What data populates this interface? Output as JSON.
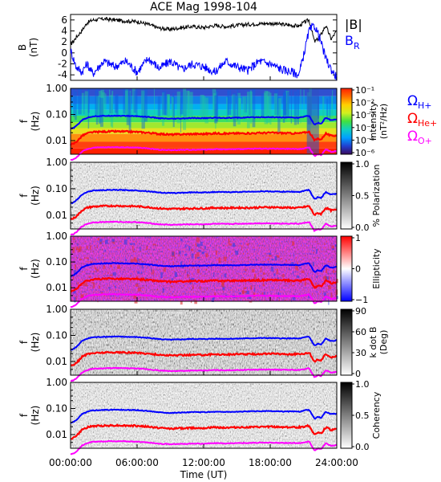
{
  "chart_data": [
    {
      "type": "line",
      "title": "ACE Mag 1998-104",
      "ylabel": "B",
      "yunit": "(nT)",
      "ylim": [
        -5,
        7
      ],
      "yticks": [
        "6",
        "4",
        "2",
        "0",
        "-2",
        "-4"
      ],
      "legend": [
        {
          "label": "|B|",
          "color": "#000000"
        },
        {
          "label": "B",
          "sub": "R",
          "color": "#0000ff"
        }
      ],
      "series": [
        {
          "name": "|B|",
          "color": "#000000",
          "x": [
            0,
            0.5,
            1,
            1.5,
            2,
            3,
            4,
            5,
            6,
            7,
            8,
            9,
            10,
            11,
            12,
            13,
            14,
            15,
            16,
            17,
            18,
            19,
            20,
            20.6,
            21,
            21.5,
            22,
            22.5,
            23,
            23.5,
            24
          ],
          "y": [
            1.5,
            2.8,
            4.0,
            5.5,
            6.0,
            6.2,
            6.0,
            5.8,
            5.7,
            5.2,
            4.5,
            4.3,
            4.6,
            4.8,
            4.6,
            5.0,
            4.8,
            5.0,
            5.2,
            5.3,
            5.4,
            5.2,
            5.0,
            4.9,
            5.5,
            6.0,
            2.0,
            3.0,
            5.0,
            2.5,
            4.0
          ]
        },
        {
          "name": "B_R",
          "color": "#0000ff",
          "x": [
            0,
            0.5,
            1,
            1.5,
            2,
            3,
            4,
            5,
            6,
            7,
            8,
            9,
            10,
            11,
            12,
            13,
            14,
            15,
            16,
            17,
            18,
            19,
            20,
            20.6,
            21,
            21.5,
            22,
            22.5,
            23,
            23.5,
            24
          ],
          "y": [
            0.5,
            -2.5,
            -3.5,
            -2.0,
            -3.8,
            -1.5,
            -2.5,
            -1.5,
            -3.5,
            -1.0,
            -2.8,
            -1.5,
            -3.0,
            -2.0,
            -2.5,
            -3.5,
            -1.5,
            -2.5,
            -3.2,
            -1.5,
            -2.0,
            -3.0,
            -3.5,
            -4.0,
            -0.5,
            4.0,
            5.0,
            2.5,
            -1.0,
            -3.0,
            -4.5
          ]
        }
      ]
    },
    {
      "type": "heatmap",
      "ylabel": "f",
      "yunit": "(Hz)",
      "yscale": "log",
      "ylim": [
        0.003,
        1.0
      ],
      "yticks": [
        "1.00",
        "0.10",
        "0.01"
      ],
      "colorbar": {
        "label": "Intensity",
        "unit": "(nT²/Hz)",
        "ticks": [
          "10⁻¹",
          "10⁻²",
          "10⁻³",
          "10⁻⁴",
          "10⁻⁵",
          "10⁻⁶"
        ],
        "colors": [
          "#3b0a5e",
          "#2040d0",
          "#00a0ff",
          "#10d0c0",
          "#40e040",
          "#d0f020",
          "#ffd000",
          "#ff7000",
          "#ff2000"
        ]
      },
      "overlay_labels": [
        {
          "symbol": "Ω",
          "sub": "H+",
          "color": "#0000ff"
        },
        {
          "symbol": "Ω",
          "sub": "He+",
          "color": "#ff0000"
        },
        {
          "symbol": "Ω",
          "sub": "O+",
          "color": "#ff00ff"
        }
      ]
    },
    {
      "type": "heatmap",
      "ylabel": "f",
      "yunit": "(Hz)",
      "yscale": "log",
      "yticks": [
        "1.00",
        "0.10",
        "0.01"
      ],
      "colorbar": {
        "label": "% Polarization",
        "ticks": [
          "1.0",
          "0.5",
          "0.0"
        ],
        "colors": [
          "#000000",
          "#ffffff"
        ]
      }
    },
    {
      "type": "heatmap",
      "ylabel": "f",
      "yunit": "(Hz)",
      "yscale": "log",
      "yticks": [
        "1.00",
        "0.10",
        "0.01"
      ],
      "colorbar": {
        "label": "Ellipticity",
        "ticks": [
          "1",
          "0",
          "−1"
        ],
        "colors": [
          "#ff0000",
          "#ffffff",
          "#0000ff"
        ]
      }
    },
    {
      "type": "heatmap",
      "ylabel": "f",
      "yunit": "(Hz)",
      "yscale": "log",
      "yticks": [
        "1.00",
        "0.10",
        "0.01"
      ],
      "colorbar": {
        "label": "k dot B",
        "unit": "(Deg)",
        "ticks": [
          "90",
          "60",
          "30",
          "0"
        ],
        "colors": [
          "#000000",
          "#ffffff"
        ]
      }
    },
    {
      "type": "heatmap",
      "ylabel": "f",
      "yunit": "(Hz)",
      "yscale": "log",
      "yticks": [
        "1.00",
        "0.10",
        "0.01"
      ],
      "colorbar": {
        "label": "Coherency",
        "ticks": [
          "1.0",
          "0.5",
          "0.0"
        ],
        "colors": [
          "#000000",
          "#ffffff"
        ]
      }
    }
  ],
  "gyrofrequency_curves": [
    {
      "name": "Ω_H+",
      "color": "#0000ff",
      "x": [
        0,
        0.25,
        0.5,
        0.75,
        1,
        1.5,
        2,
        3,
        4,
        5,
        6,
        7,
        8,
        9,
        10,
        11,
        12,
        13,
        14,
        15,
        16,
        17,
        18,
        19,
        20,
        20.6,
        21,
        21.5,
        22,
        22.3,
        22.6,
        23,
        23.5,
        24
      ],
      "y": [
        0.028,
        0.03,
        0.036,
        0.045,
        0.06,
        0.075,
        0.085,
        0.088,
        0.09,
        0.088,
        0.086,
        0.08,
        0.072,
        0.068,
        0.07,
        0.073,
        0.072,
        0.075,
        0.074,
        0.075,
        0.077,
        0.079,
        0.079,
        0.077,
        0.077,
        0.075,
        0.082,
        0.09,
        0.04,
        0.048,
        0.044,
        0.075,
        0.06,
        0.065
      ]
    },
    {
      "name": "Ω_He+",
      "color": "#ff0000",
      "x": [
        0,
        0.25,
        0.5,
        0.75,
        1,
        1.5,
        2,
        3,
        4,
        5,
        6,
        7,
        8,
        9,
        10,
        11,
        12,
        13,
        14,
        15,
        16,
        17,
        18,
        19,
        20,
        20.6,
        21,
        21.5,
        22,
        22.3,
        22.6,
        23,
        23.5,
        24
      ],
      "y": [
        0.007,
        0.0075,
        0.009,
        0.011,
        0.015,
        0.019,
        0.021,
        0.022,
        0.0225,
        0.022,
        0.0215,
        0.02,
        0.018,
        0.017,
        0.0175,
        0.018,
        0.018,
        0.019,
        0.0185,
        0.019,
        0.019,
        0.0195,
        0.02,
        0.0195,
        0.019,
        0.019,
        0.02,
        0.022,
        0.01,
        0.012,
        0.011,
        0.019,
        0.015,
        0.016
      ]
    },
    {
      "name": "Ω_O+",
      "color": "#ff00ff",
      "x": [
        0,
        0.25,
        0.5,
        0.75,
        1,
        1.5,
        2,
        3,
        4,
        5,
        6,
        7,
        8,
        9,
        10,
        11,
        12,
        13,
        14,
        15,
        16,
        17,
        18,
        19,
        20,
        20.6,
        21,
        21.5,
        22,
        22.3,
        22.6,
        23,
        23.5,
        24
      ],
      "y": [
        0.0018,
        0.0019,
        0.0022,
        0.0028,
        0.0037,
        0.0047,
        0.0053,
        0.0055,
        0.0056,
        0.0055,
        0.0054,
        0.005,
        0.0045,
        0.0043,
        0.0044,
        0.0045,
        0.0045,
        0.0047,
        0.0046,
        0.0047,
        0.0048,
        0.0049,
        0.0049,
        0.0048,
        0.0048,
        0.0047,
        0.005,
        0.0055,
        0.0025,
        0.003,
        0.0028,
        0.0047,
        0.0037,
        0.004
      ]
    }
  ],
  "x_axis": {
    "label": "Time (UT)",
    "ticks": [
      "00:00:00",
      "06:00:00",
      "12:00:00",
      "18:00:00",
      "24:00:00"
    ],
    "range_hours": [
      0,
      24
    ]
  }
}
